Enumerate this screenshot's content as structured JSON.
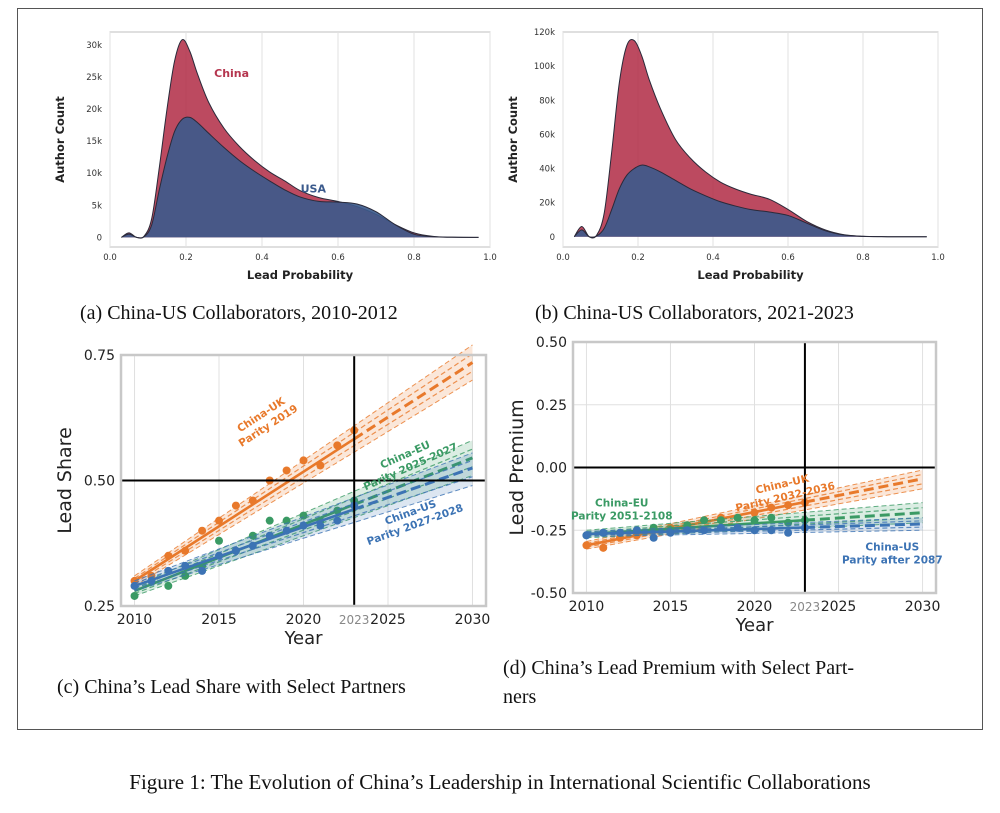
{
  "figure_caption": "Figure 1: The Evolution of China’s Leadership in International Scientific Collaborations",
  "panels": {
    "a": {
      "caption": "(a) China-US Collaborators, 2010-2012"
    },
    "b": {
      "caption": "(b) China-US Collaborators, 2021-2023"
    },
    "c": {
      "caption": "(c) China’s Lead Share with Select Partners"
    },
    "d": {
      "caption_line1": "(d) China’s Lead Premium with Select Part-",
      "caption_line2": "ners"
    }
  },
  "colors": {
    "china": "#b5364f",
    "usa": "#3b5a8c",
    "uk": "#e8792b",
    "eu": "#3a9a64",
    "us_line": "#3c73b4"
  },
  "chart_data": [
    {
      "id": "a",
      "type": "area",
      "xlabel": "Lead Probability",
      "ylabel": "Author Count",
      "xlim": [
        0,
        1
      ],
      "ylim": [
        -1500,
        32000
      ],
      "xticks": [
        0.0,
        0.2,
        0.4,
        0.6,
        0.8,
        1.0
      ],
      "xtick_labels": [
        "0.0",
        "0.2",
        "0.4",
        "0.6",
        "0.8",
        "1.0"
      ],
      "yticks": [
        0,
        5000,
        10000,
        15000,
        20000,
        25000,
        30000
      ],
      "ytick_labels": [
        "0",
        "5k",
        "10k",
        "15k",
        "20k",
        "25k",
        "30k"
      ],
      "grid": "x",
      "series": [
        {
          "name": "China",
          "label_at": [
            0.32,
            25000
          ],
          "x": [
            0.03,
            0.05,
            0.07,
            0.09,
            0.11,
            0.13,
            0.15,
            0.17,
            0.19,
            0.21,
            0.23,
            0.26,
            0.3,
            0.34,
            0.38,
            0.42,
            0.46,
            0.5,
            0.55,
            0.6,
            0.65,
            0.7,
            0.75,
            0.8,
            0.85,
            0.9,
            0.97
          ],
          "y": [
            0,
            700,
            0,
            200,
            3000,
            11000,
            20000,
            27500,
            30800,
            29000,
            25500,
            21000,
            17000,
            14200,
            12000,
            10200,
            8800,
            7300,
            6200,
            5600,
            4800,
            3600,
            2000,
            700,
            150,
            30,
            0
          ]
        },
        {
          "name": "USA",
          "label_at": [
            0.535,
            7000
          ],
          "x": [
            0.03,
            0.05,
            0.07,
            0.09,
            0.11,
            0.13,
            0.15,
            0.17,
            0.19,
            0.21,
            0.23,
            0.26,
            0.3,
            0.34,
            0.38,
            0.42,
            0.46,
            0.5,
            0.55,
            0.6,
            0.65,
            0.7,
            0.75,
            0.8,
            0.85,
            0.9,
            0.97
          ],
          "y": [
            0,
            500,
            0,
            100,
            2000,
            7500,
            12500,
            16500,
            18400,
            18700,
            17900,
            16200,
            14000,
            12000,
            10300,
            8800,
            7400,
            6300,
            5600,
            5500,
            5200,
            4000,
            2000,
            500,
            100,
            20,
            0
          ]
        }
      ]
    },
    {
      "id": "b",
      "type": "area",
      "xlabel": "Lead Probability",
      "ylabel": "Author Count",
      "xlim": [
        0,
        1
      ],
      "ylim": [
        -6000,
        120000
      ],
      "xticks": [
        0.0,
        0.2,
        0.4,
        0.6,
        0.8,
        1.0
      ],
      "xtick_labels": [
        "0.0",
        "0.2",
        "0.4",
        "0.6",
        "0.8",
        "1.0"
      ],
      "yticks": [
        0,
        20000,
        40000,
        60000,
        80000,
        100000,
        120000
      ],
      "ytick_labels": [
        "0",
        "20k",
        "40k",
        "60k",
        "80k",
        "100k",
        "120k"
      ],
      "grid": "x",
      "series": [
        {
          "name": "China",
          "x": [
            0.03,
            0.05,
            0.07,
            0.09,
            0.11,
            0.13,
            0.15,
            0.17,
            0.19,
            0.21,
            0.23,
            0.26,
            0.3,
            0.34,
            0.38,
            0.42,
            0.46,
            0.5,
            0.55,
            0.6,
            0.65,
            0.7,
            0.75,
            0.8,
            0.85,
            0.9,
            0.97
          ],
          "y": [
            0,
            6000,
            0,
            1000,
            14000,
            50000,
            90000,
            112000,
            115000,
            106000,
            92000,
            75000,
            57000,
            46000,
            38000,
            32000,
            28000,
            25000,
            22000,
            16000,
            9000,
            4000,
            1200,
            300,
            60,
            10,
            0
          ]
        },
        {
          "name": "USA",
          "x": [
            0.03,
            0.05,
            0.07,
            0.09,
            0.11,
            0.13,
            0.15,
            0.17,
            0.19,
            0.21,
            0.23,
            0.26,
            0.3,
            0.34,
            0.38,
            0.42,
            0.46,
            0.5,
            0.55,
            0.6,
            0.65,
            0.7,
            0.75,
            0.8,
            0.85,
            0.9,
            0.97
          ],
          "y": [
            0,
            4000,
            0,
            500,
            5000,
            16000,
            28000,
            36000,
            40000,
            42000,
            41000,
            38000,
            33000,
            28000,
            24000,
            20500,
            18000,
            16000,
            14500,
            12500,
            8000,
            3500,
            1000,
            250,
            50,
            10,
            0
          ]
        }
      ]
    },
    {
      "id": "c",
      "type": "scatter",
      "xlabel": "Year",
      "ylabel": "Lead Share",
      "xlim": [
        2009.2,
        2030.8
      ],
      "ylim": [
        0.25,
        0.75
      ],
      "xticks": [
        2010,
        2015,
        2020,
        2023,
        2025,
        2030
      ],
      "xtick_labels": [
        "2010",
        "2015",
        "2020",
        "2023",
        "2025",
        "2030"
      ],
      "yticks": [
        0.25,
        0.5,
        0.75
      ],
      "ytick_labels": [
        "0.25",
        "0.50",
        "0.75"
      ],
      "grid": "both",
      "ref_x": 2023,
      "ref_y": 0.5,
      "series": [
        {
          "name": "China-UK",
          "note": "Parity 2019",
          "label_at": [
            2017.6,
            0.625
          ],
          "rotate": -33,
          "color_key": "uk",
          "x": [
            2010,
            2011,
            2012,
            2013,
            2014,
            2015,
            2016,
            2017,
            2018,
            2019,
            2020,
            2021,
            2022,
            2023
          ],
          "y": [
            0.3,
            0.31,
            0.35,
            0.36,
            0.4,
            0.42,
            0.45,
            0.46,
            0.5,
            0.52,
            0.54,
            0.53,
            0.57,
            0.6
          ],
          "fit_x": [
            2010,
            2030
          ],
          "fit_y": [
            0.3,
            0.735
          ],
          "band_lo": [
            0.29,
            0.7
          ],
          "band_hi": [
            0.31,
            0.77
          ]
        },
        {
          "name": "China-EU",
          "note": "Parity 2025-2027",
          "label_at": [
            2026.1,
            0.545
          ],
          "rotate": -24,
          "color_key": "eu",
          "x": [
            2010,
            2011,
            2012,
            2013,
            2014,
            2015,
            2016,
            2017,
            2018,
            2019,
            2020,
            2021,
            2022,
            2023
          ],
          "y": [
            0.27,
            0.3,
            0.29,
            0.31,
            0.33,
            0.38,
            0.36,
            0.39,
            0.42,
            0.42,
            0.43,
            0.42,
            0.44,
            0.46
          ],
          "fit_x": [
            2010,
            2030
          ],
          "fit_y": [
            0.28,
            0.545
          ],
          "band_lo": [
            0.27,
            0.51
          ],
          "band_hi": [
            0.29,
            0.58
          ]
        },
        {
          "name": "China-US",
          "note": "Parity 2027-2028",
          "label_at": [
            2026.4,
            0.43
          ],
          "rotate": -20,
          "color_key": "us_line",
          "x": [
            2010,
            2011,
            2012,
            2013,
            2014,
            2015,
            2016,
            2017,
            2018,
            2019,
            2020,
            2021,
            2022,
            2023
          ],
          "y": [
            0.29,
            0.3,
            0.32,
            0.33,
            0.32,
            0.35,
            0.36,
            0.37,
            0.39,
            0.4,
            0.41,
            0.41,
            0.42,
            0.45
          ],
          "fit_x": [
            2010,
            2030
          ],
          "fit_y": [
            0.29,
            0.525
          ],
          "band_lo": [
            0.28,
            0.49
          ],
          "band_hi": [
            0.3,
            0.555
          ]
        }
      ]
    },
    {
      "id": "d",
      "type": "scatter",
      "xlabel": "Year",
      "ylabel": "Lead Premium",
      "xlim": [
        2009.2,
        2030.8
      ],
      "ylim": [
        -0.5,
        0.5
      ],
      "xticks": [
        2010,
        2015,
        2020,
        2023,
        2025,
        2030
      ],
      "xtick_labels": [
        "2010",
        "2015",
        "2020",
        "2023",
        "2025",
        "2030"
      ],
      "yticks": [
        -0.5,
        -0.25,
        0,
        0.25,
        0.5
      ],
      "ytick_labels": [
        "-0.50",
        "-0.25",
        "0.00",
        "0.25",
        "0.50"
      ],
      "grid": "both",
      "ref_x": 2023,
      "ref_y": 0,
      "series": [
        {
          "name": "China-UK",
          "note": "Parity 2032-2036",
          "label_at": [
            2021.7,
            -0.08
          ],
          "rotate": -13,
          "color_key": "uk",
          "x": [
            2010,
            2011,
            2012,
            2013,
            2014,
            2015,
            2016,
            2017,
            2018,
            2019,
            2020,
            2021,
            2022,
            2023
          ],
          "y": [
            -0.31,
            -0.32,
            -0.28,
            -0.27,
            -0.25,
            -0.24,
            -0.23,
            -0.21,
            -0.2,
            -0.2,
            -0.18,
            -0.16,
            -0.15,
            -0.14
          ],
          "fit_x": [
            2010,
            2030
          ],
          "fit_y": [
            -0.31,
            -0.045
          ],
          "band_lo": [
            -0.325,
            -0.085
          ],
          "band_hi": [
            -0.295,
            -0.01
          ]
        },
        {
          "name": "China-EU",
          "note": "Parity 2051-2108",
          "label_at": [
            2012.1,
            -0.155
          ],
          "rotate": 0,
          "color_key": "eu",
          "x": [
            2010,
            2011,
            2012,
            2013,
            2014,
            2015,
            2016,
            2017,
            2018,
            2019,
            2020,
            2021,
            2022,
            2023
          ],
          "y": [
            -0.27,
            -0.26,
            -0.26,
            -0.25,
            -0.24,
            -0.25,
            -0.23,
            -0.21,
            -0.21,
            -0.2,
            -0.21,
            -0.2,
            -0.22,
            -0.21
          ],
          "fit_x": [
            2010,
            2030
          ],
          "fit_y": [
            -0.265,
            -0.18
          ],
          "band_lo": [
            -0.28,
            -0.22
          ],
          "band_hi": [
            -0.25,
            -0.14
          ]
        },
        {
          "name": "China-US",
          "note": "Parity after 2087",
          "label_at": [
            2028.2,
            -0.33
          ],
          "rotate": 0,
          "color_key": "us_line",
          "x": [
            2010,
            2011,
            2012,
            2013,
            2014,
            2015,
            2016,
            2017,
            2018,
            2019,
            2020,
            2021,
            2022,
            2023
          ],
          "y": [
            -0.27,
            -0.26,
            -0.26,
            -0.25,
            -0.28,
            -0.26,
            -0.25,
            -0.25,
            -0.24,
            -0.24,
            -0.25,
            -0.25,
            -0.26,
            -0.24
          ],
          "fit_x": [
            2010,
            2030
          ],
          "fit_y": [
            -0.265,
            -0.225
          ],
          "band_lo": [
            -0.275,
            -0.25
          ],
          "band_hi": [
            -0.255,
            -0.2
          ]
        }
      ]
    }
  ]
}
